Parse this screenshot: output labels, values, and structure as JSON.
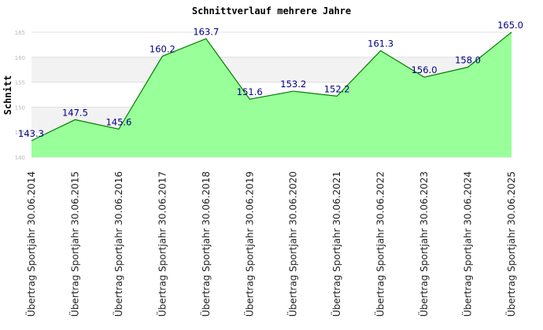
{
  "chart_data": {
    "type": "area",
    "title": "Schnittverlauf mehrere Jahre",
    "xlabel": "",
    "ylabel": "Schnitt",
    "categories": [
      "Übertrag Sportjahr 30.06.2014",
      "Übertrag Sportjahr 30.06.2015",
      "Übertrag Sportjahr 30.06.2016",
      "Übertrag Sportjahr 30.06.2017",
      "Übertrag Sportjahr 30.06.2018",
      "Übertrag Sportjahr 30.06.2019",
      "Übertrag Sportjahr 30.06.2020",
      "Übertrag Sportjahr 30.06.2021",
      "Übertrag Sportjahr 30.06.2022",
      "Übertrag Sportjahr 30.06.2023",
      "Übertrag Sportjahr 30.06.2024",
      "Übertrag Sportjahr 30.06.2025"
    ],
    "values": [
      143.3,
      147.5,
      145.6,
      160.2,
      163.7,
      151.6,
      153.2,
      152.2,
      161.3,
      156.0,
      158.0,
      165.0
    ],
    "value_labels": [
      "143.3",
      "147.5",
      "145.6",
      "160.2",
      "163.7",
      "151.6",
      "153.2",
      "152.2",
      "161.3",
      "156.0",
      "158.0",
      "165.0"
    ],
    "ylim": [
      140,
      165
    ],
    "yticks": [
      140,
      145,
      150,
      155,
      160,
      165
    ],
    "grid": true,
    "legend": "none",
    "colors": {
      "fill": "#99ff99",
      "line": "#008000",
      "label": "#000080",
      "band": "#f2f2f2",
      "grid": "#e0e0e0"
    }
  }
}
